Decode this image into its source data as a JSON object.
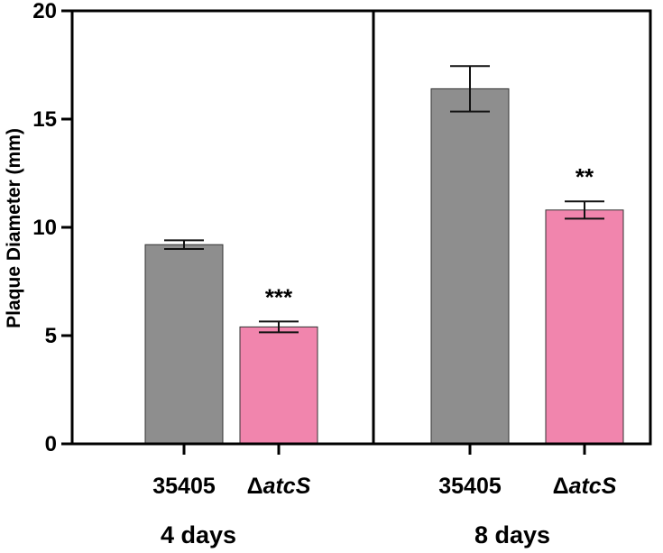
{
  "chart_data": {
    "type": "bar",
    "ylabel": "Plaque Diameter (mm)",
    "ylim": [
      0,
      20
    ],
    "yticks": [
      "0",
      "5",
      "10",
      "15",
      "20"
    ],
    "ytick_values": [
      0,
      5,
      10,
      15,
      20
    ],
    "grid": false,
    "colors": {
      "35405": "#8e8e8e",
      "atcS": "#f185ad"
    },
    "panels": [
      {
        "group_label": "4 days",
        "bars": [
          {
            "strain_prefix": "",
            "strain_italic": "35405",
            "category": "35405",
            "value": 9.2,
            "error": 0.2,
            "significance": ""
          },
          {
            "strain_prefix": "Δ",
            "strain_italic": "atcS",
            "category": "ΔatcS",
            "value": 5.4,
            "error": 0.25,
            "significance": "***"
          }
        ]
      },
      {
        "group_label": "8 days",
        "bars": [
          {
            "strain_prefix": "",
            "strain_italic": "35405",
            "category": "35405",
            "value": 16.4,
            "error": 1.05,
            "significance": ""
          },
          {
            "strain_prefix": "Δ",
            "strain_italic": "atcS",
            "category": "ΔatcS",
            "value": 10.8,
            "error": 0.4,
            "significance": "**"
          }
        ]
      }
    ]
  }
}
